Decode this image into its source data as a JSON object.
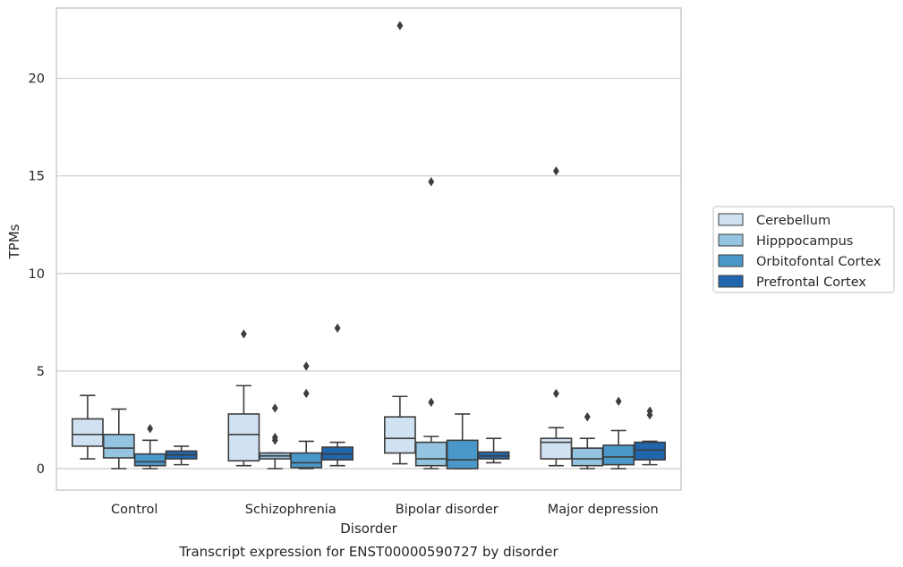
{
  "chart_data": {
    "type": "box",
    "caption": "Transcript expression for ENST00000590727 by disorder",
    "xlabel": "Disorder",
    "ylabel": "TPMs",
    "ylim": [
      -1.1,
      23.6
    ],
    "yticks": [
      0,
      5,
      10,
      15,
      20
    ],
    "grid": "horizontal",
    "legend_position": "right",
    "categories": [
      "Control",
      "Schizophrenia",
      "Bipolar disorder",
      "Major depression"
    ],
    "series": [
      {
        "name": "Cerebellum",
        "color": "#d0e1f2",
        "boxes": [
          {
            "whisker_low": 0.5,
            "q1": 1.15,
            "median": 1.75,
            "q3": 2.55,
            "whisker_high": 3.75,
            "outliers": []
          },
          {
            "whisker_low": 0.15,
            "q1": 0.4,
            "median": 1.75,
            "q3": 2.8,
            "whisker_high": 4.25,
            "outliers": [
              6.9
            ]
          },
          {
            "whisker_low": 0.25,
            "q1": 0.8,
            "median": 1.55,
            "q3": 2.65,
            "whisker_high": 3.7,
            "outliers": [
              22.7
            ]
          },
          {
            "whisker_low": 0.15,
            "q1": 0.5,
            "median": 1.35,
            "q3": 1.55,
            "whisker_high": 2.1,
            "outliers": [
              3.85,
              15.25
            ]
          }
        ]
      },
      {
        "name": "Hipppocampus",
        "color": "#94c4df",
        "boxes": [
          {
            "whisker_low": 0.0,
            "q1": 0.55,
            "median": 1.05,
            "q3": 1.75,
            "whisker_high": 3.05,
            "outliers": []
          },
          {
            "whisker_low": 0.0,
            "q1": 0.5,
            "median": 0.65,
            "q3": 0.8,
            "whisker_high": 0.8,
            "outliers": [
              1.45,
              1.6,
              3.1
            ]
          },
          {
            "whisker_low": 0.0,
            "q1": 0.15,
            "median": 0.5,
            "q3": 1.35,
            "whisker_high": 1.65,
            "outliers": [
              3.4,
              14.7
            ]
          },
          {
            "whisker_low": 0.0,
            "q1": 0.15,
            "median": 0.5,
            "q3": 1.05,
            "whisker_high": 1.55,
            "outliers": [
              2.65
            ]
          }
        ]
      },
      {
        "name": "Orbitofontal Cortex",
        "color": "#4a98c9",
        "boxes": [
          {
            "whisker_low": 0.0,
            "q1": 0.15,
            "median": 0.35,
            "q3": 0.75,
            "whisker_high": 1.45,
            "outliers": [
              2.05
            ]
          },
          {
            "whisker_low": 0.0,
            "q1": 0.05,
            "median": 0.3,
            "q3": 0.8,
            "whisker_high": 1.4,
            "outliers": [
              3.85,
              5.25
            ]
          },
          {
            "whisker_low": 0.0,
            "q1": 0.0,
            "median": 0.45,
            "q3": 1.45,
            "whisker_high": 2.8,
            "outliers": []
          },
          {
            "whisker_low": 0.0,
            "q1": 0.2,
            "median": 0.6,
            "q3": 1.2,
            "whisker_high": 1.95,
            "outliers": [
              3.45
            ]
          }
        ]
      },
      {
        "name": "Prefrontal Cortex",
        "color": "#2166ac",
        "boxes": [
          {
            "whisker_low": 0.2,
            "q1": 0.5,
            "median": 0.7,
            "q3": 0.9,
            "whisker_high": 1.15,
            "outliers": []
          },
          {
            "whisker_low": 0.15,
            "q1": 0.45,
            "median": 0.75,
            "q3": 1.1,
            "whisker_high": 1.35,
            "outliers": [
              7.2
            ]
          },
          {
            "whisker_low": 0.3,
            "q1": 0.5,
            "median": 0.65,
            "q3": 0.85,
            "whisker_high": 1.55,
            "outliers": []
          },
          {
            "whisker_low": 0.2,
            "q1": 0.45,
            "median": 0.95,
            "q3": 1.35,
            "whisker_high": 1.4,
            "outliers": [
              2.75,
              2.95
            ]
          }
        ]
      }
    ]
  }
}
